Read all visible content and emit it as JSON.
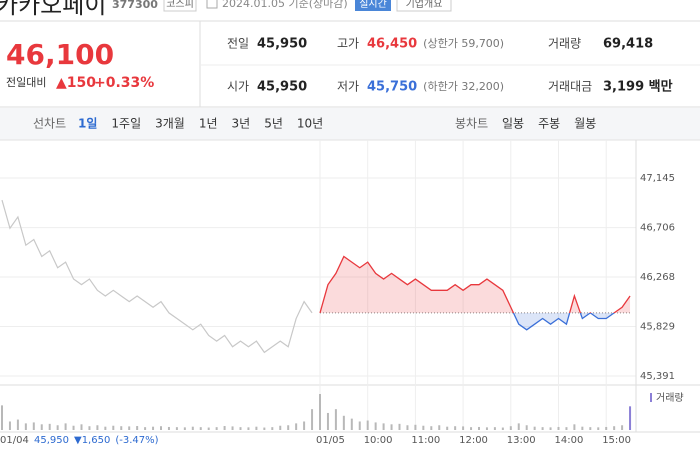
{
  "header": {
    "title": "카카오페이",
    "code": "377300",
    "market": "코스피",
    "date": "2024.01.05 기준(장마감)",
    "realtime": "실시간",
    "company": "기업개요"
  },
  "quote": {
    "price": "46,100",
    "change_label": "전일대비",
    "change": "▲150",
    "change_pct": "+0.33%"
  },
  "stats": [
    [
      {
        "label": "전일",
        "value": "45,950"
      },
      {
        "label": "고가",
        "value": "46,450",
        "note": "(상한가 59,700)"
      },
      {
        "label": "거래량",
        "value": "69,418"
      }
    ],
    [
      {
        "label": "시가",
        "value": "45,950"
      },
      {
        "label": "저가",
        "value": "45,750",
        "note": "(하한가 32,200)"
      },
      {
        "label": "거래대금",
        "value": "3,199 백만"
      }
    ]
  ],
  "tabs": {
    "line_label": "선차트",
    "line": [
      "1일",
      "1주일",
      "3개월",
      "1년",
      "3년",
      "5년",
      "10년"
    ],
    "candle_label": "봉차트",
    "candle": [
      "일봉",
      "주봉",
      "월봉"
    ]
  },
  "chart_data": {
    "type": "line",
    "categories": [
      "01/04",
      null,
      null,
      null,
      null,
      null,
      null,
      null,
      null,
      null,
      null,
      null,
      null,
      null,
      null,
      null,
      null,
      null,
      null,
      null,
      null,
      null,
      null,
      null,
      null,
      null,
      null,
      null,
      null,
      null,
      null,
      null,
      null,
      null,
      null,
      null,
      null,
      null,
      null,
      null,
      "01/05",
      null,
      null,
      null,
      null,
      null,
      "10:00",
      null,
      null,
      null,
      null,
      null,
      "11:00",
      null,
      null,
      null,
      null,
      null,
      "12:00",
      null,
      null,
      null,
      null,
      null,
      "13:00",
      null,
      null,
      null,
      null,
      null,
      "14:00",
      null,
      null,
      null,
      null,
      null,
      "15:00",
      null,
      null,
      null
    ],
    "series": [
      {
        "color": "#c8c8c8",
        "values": [
          46950,
          46700,
          46800,
          46550,
          46600,
          46450,
          46500,
          46350,
          46400,
          46250,
          46200,
          46250,
          46150,
          46100,
          46150,
          46100,
          46050,
          46100,
          46050,
          46000,
          46050,
          45950,
          45900,
          45850,
          45800,
          45850,
          45750,
          45700,
          45750,
          45650,
          45700,
          45650,
          45700,
          45600,
          45650,
          45700,
          45650,
          45900,
          46050,
          45950,
          null,
          null,
          null,
          null,
          null,
          null,
          null,
          null,
          null,
          null,
          null,
          null,
          null,
          null,
          null,
          null,
          null,
          null,
          null,
          null,
          null,
          null,
          null,
          null,
          null,
          null,
          null,
          null,
          null,
          null,
          null,
          null,
          null,
          null,
          null,
          null,
          null,
          null,
          null,
          null
        ]
      },
      {
        "up_color": "#e8383d",
        "down_color": "#3a6fd8",
        "values": [
          null,
          null,
          null,
          null,
          null,
          null,
          null,
          null,
          null,
          null,
          null,
          null,
          null,
          null,
          null,
          null,
          null,
          null,
          null,
          null,
          null,
          null,
          null,
          null,
          null,
          null,
          null,
          null,
          null,
          null,
          null,
          null,
          null,
          null,
          null,
          null,
          null,
          null,
          null,
          null,
          45950,
          46200,
          46300,
          46450,
          46400,
          46350,
          46400,
          46300,
          46250,
          46300,
          46250,
          46200,
          46250,
          46200,
          46150,
          46150,
          46150,
          46200,
          46150,
          46200,
          46200,
          46250,
          46200,
          46150,
          46000,
          45850,
          45800,
          45850,
          45900,
          45850,
          45900,
          45850,
          46100,
          45900,
          45950,
          45900,
          45900,
          45950,
          46000,
          46100
        ]
      }
    ],
    "baseline": 45950,
    "volume": {
      "color": "#b8b8b8",
      "values": [
        2600,
        900,
        1100,
        700,
        800,
        600,
        650,
        500,
        700,
        450,
        600,
        400,
        500,
        350,
        450,
        400,
        380,
        420,
        300,
        350,
        400,
        320,
        300,
        280,
        350,
        300,
        260,
        300,
        420,
        380,
        300,
        280,
        350,
        260,
        300,
        450,
        500,
        700,
        900,
        2200,
        3800,
        1800,
        2200,
        1500,
        1200,
        900,
        1000,
        800,
        700,
        600,
        650,
        500,
        550,
        450,
        400,
        500,
        350,
        400,
        380,
        300,
        320,
        280,
        300,
        260,
        400,
        700,
        500,
        350,
        300,
        280,
        320,
        300,
        600,
        350,
        300,
        280,
        320,
        400,
        500,
        2500
      ]
    },
    "volume_label": "거래량",
    "ylim": [
      45311,
      47482
    ],
    "yticks": [
      {
        "value": 47145,
        "label": "47,145"
      },
      {
        "value": 46706,
        "label": "46,706"
      },
      {
        "value": 46268,
        "label": "46,268"
      },
      {
        "value": 45829,
        "label": "45,829"
      },
      {
        "value": 45391,
        "label": "45,391"
      }
    ],
    "grid": true,
    "footer": {
      "price": "45,950",
      "change": "▼1,650",
      "pct": "(-3.47%)"
    }
  }
}
